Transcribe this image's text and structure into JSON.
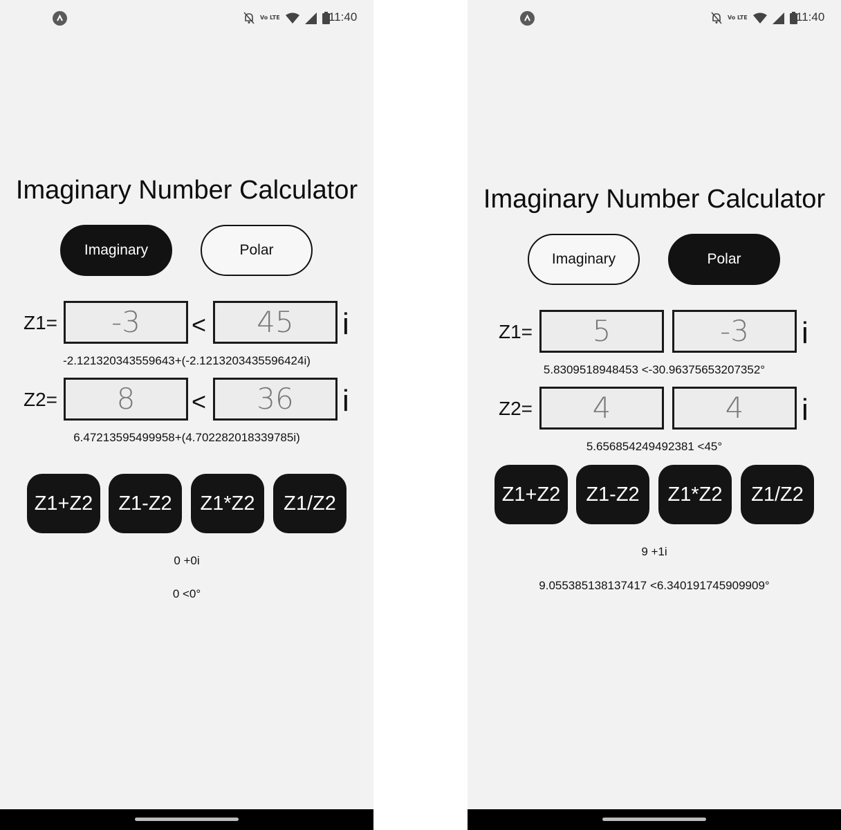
{
  "status_bar": {
    "time": "11:40",
    "volte_label": "Vo LTE",
    "icons": [
      "app-notification-icon",
      "bell-muted-icon",
      "volte-icon",
      "wifi-icon",
      "cell-signal-icon",
      "battery-icon"
    ]
  },
  "screens": [
    {
      "title": "Imaginary Number Calculator",
      "mode_buttons": [
        {
          "label": "Imaginary",
          "selected": true
        },
        {
          "label": "Polar",
          "selected": false
        }
      ],
      "z1": {
        "label": "Z1=",
        "first_value": "-3",
        "separator": "<",
        "second_value": "45",
        "suffix": "i"
      },
      "z1_converted": "-2.121320343559643+(-2.1213203435596424i)",
      "z2": {
        "label": "Z2=",
        "first_value": "8",
        "separator": "<",
        "second_value": "36",
        "suffix": "i"
      },
      "z2_converted": "6.47213595499958+(4.702282018339785i)",
      "operations": [
        "Z1+Z2",
        "Z1-Z2",
        "Z1*Z2",
        "Z1/Z2"
      ],
      "result_rectangular": "0 +0i",
      "result_polar": "0 <0°"
    },
    {
      "title": "Imaginary Number Calculator",
      "mode_buttons": [
        {
          "label": "Imaginary",
          "selected": false
        },
        {
          "label": "Polar",
          "selected": true
        }
      ],
      "z1": {
        "label": "Z1=",
        "first_value": "5",
        "separator": "",
        "second_value": "-3",
        "suffix": "i"
      },
      "z1_converted": "5.8309518948453 <-30.96375653207352°",
      "z2": {
        "label": "Z2=",
        "first_value": "4",
        "separator": "",
        "second_value": "4",
        "suffix": "i"
      },
      "z2_converted": "5.656854249492381 <45°",
      "operations": [
        "Z1+Z2",
        "Z1-Z2",
        "Z1*Z2",
        "Z1/Z2"
      ],
      "result_rectangular": "9 +1i",
      "result_polar": "9.055385138137417 <6.340191745909909°"
    }
  ],
  "colors": {
    "screen_background": "#f2f2f2",
    "button_dark": "#141414",
    "field_background": "#ececec",
    "nav_bar": "#000000"
  }
}
